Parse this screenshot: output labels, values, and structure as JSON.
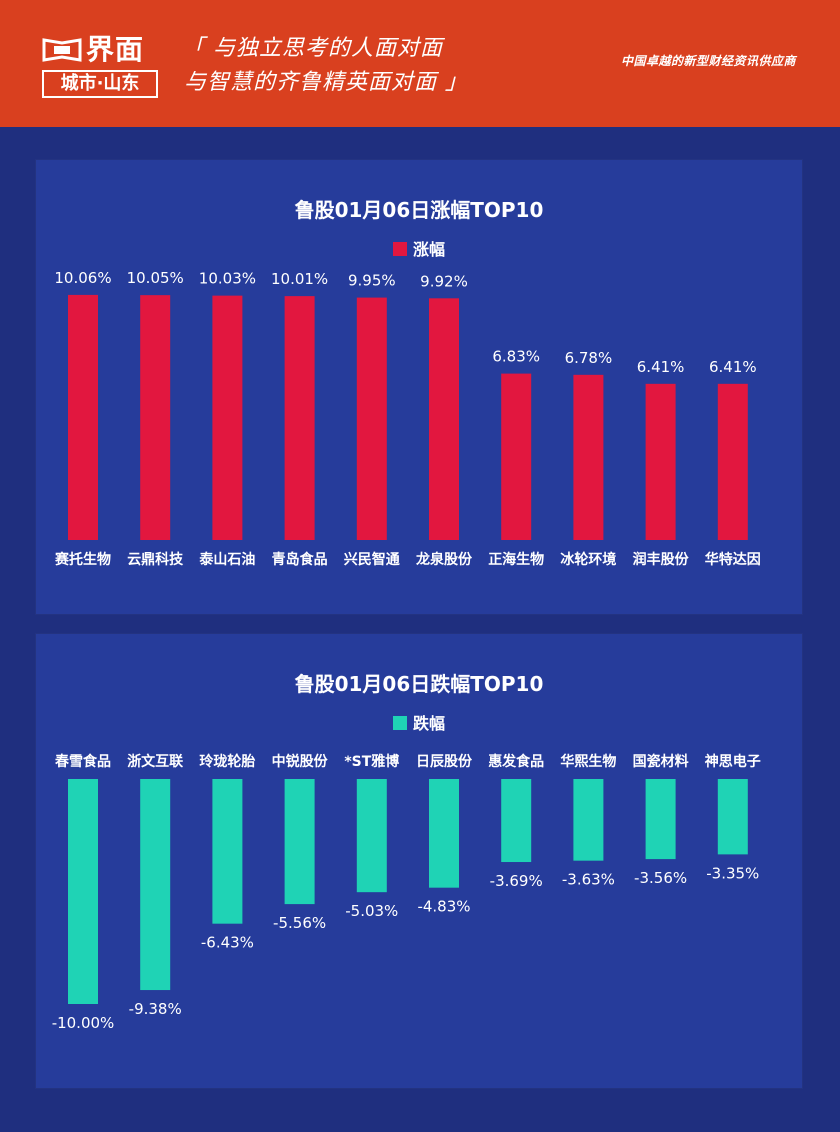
{
  "header": {
    "logo_word": "界面",
    "logo_sub": "城市·山东",
    "slogan_line1": "「 与独立思考的人面对面",
    "slogan_line2": "与智慧的齐鲁精英面对面 」",
    "tagline": "中国卓越的新型财经资讯供应商",
    "brand_color": "#d9401f"
  },
  "chart_data": [
    {
      "type": "bar",
      "title": "鲁股01月06日涨幅TOP10",
      "categories": [
        "赛托生物",
        "云鼎科技",
        "泰山石油",
        "青岛食品",
        "兴民智通",
        "龙泉股份",
        "正海生物",
        "冰轮环境",
        "润丰股份",
        "华特达因"
      ],
      "series": [
        {
          "name": "涨幅",
          "color": "#e2173f",
          "values": [
            10.06,
            10.05,
            10.03,
            10.01,
            9.95,
            9.92,
            6.83,
            6.78,
            6.41,
            6.41
          ],
          "labels": [
            "10.06%",
            "10.05%",
            "10.03%",
            "10.01%",
            "9.95%",
            "9.92%",
            "6.83%",
            "6.78%",
            "6.41%",
            "6.41%"
          ]
        }
      ],
      "ylim": [
        0,
        11
      ],
      "grid": false,
      "legend": "top-center"
    },
    {
      "type": "bar",
      "title": "鲁股01月06日跌幅TOP10",
      "categories": [
        "春雪食品",
        "浙文互联",
        "玲珑轮胎",
        "中锐股份",
        "*ST雅博",
        "日辰股份",
        "惠发食品",
        "华熙生物",
        "国瓷材料",
        "神思电子"
      ],
      "series": [
        {
          "name": "跌幅",
          "color": "#1fd3b5",
          "values": [
            -10.0,
            -9.38,
            -6.43,
            -5.56,
            -5.03,
            -4.83,
            -3.69,
            -3.63,
            -3.56,
            -3.35
          ],
          "labels": [
            "-10.00%",
            "-9.38%",
            "-6.43%",
            "-5.56%",
            "-5.03%",
            "-4.83%",
            "-3.69%",
            "-3.63%",
            "-3.56%",
            "-3.35%"
          ]
        }
      ],
      "ylim": [
        -10,
        0
      ],
      "grid": false,
      "legend": "top-center"
    }
  ]
}
